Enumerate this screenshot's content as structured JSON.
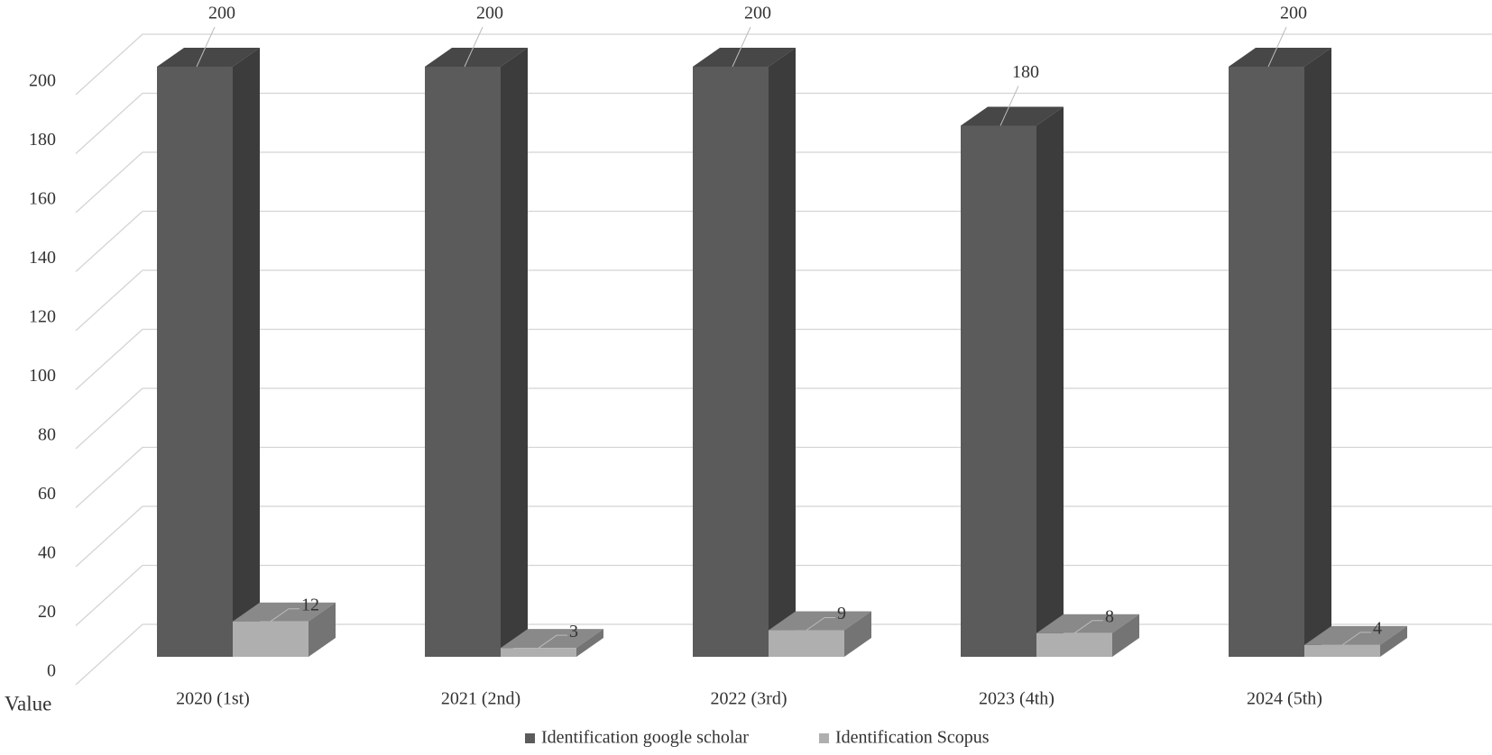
{
  "chart_data": {
    "type": "bar3d",
    "y_label": "Value",
    "categories": [
      "2020 (1st)",
      "2021 (2nd)",
      "2022 (3rd)",
      "2023 (4th)",
      "2024 (5th)"
    ],
    "series": [
      {
        "name": "Identification google scholar",
        "color": "#5b5b5b",
        "values": [
          200,
          200,
          200,
          180,
          200
        ]
      },
      {
        "name": "Identification Scopus",
        "color": "#afafaf",
        "values": [
          12,
          3,
          9,
          8,
          4
        ]
      }
    ],
    "ylim": [
      0,
      200
    ],
    "yticks": [
      0,
      20,
      40,
      60,
      80,
      100,
      120,
      140,
      160,
      180,
      200
    ],
    "grid": true,
    "legend": "bottom"
  }
}
